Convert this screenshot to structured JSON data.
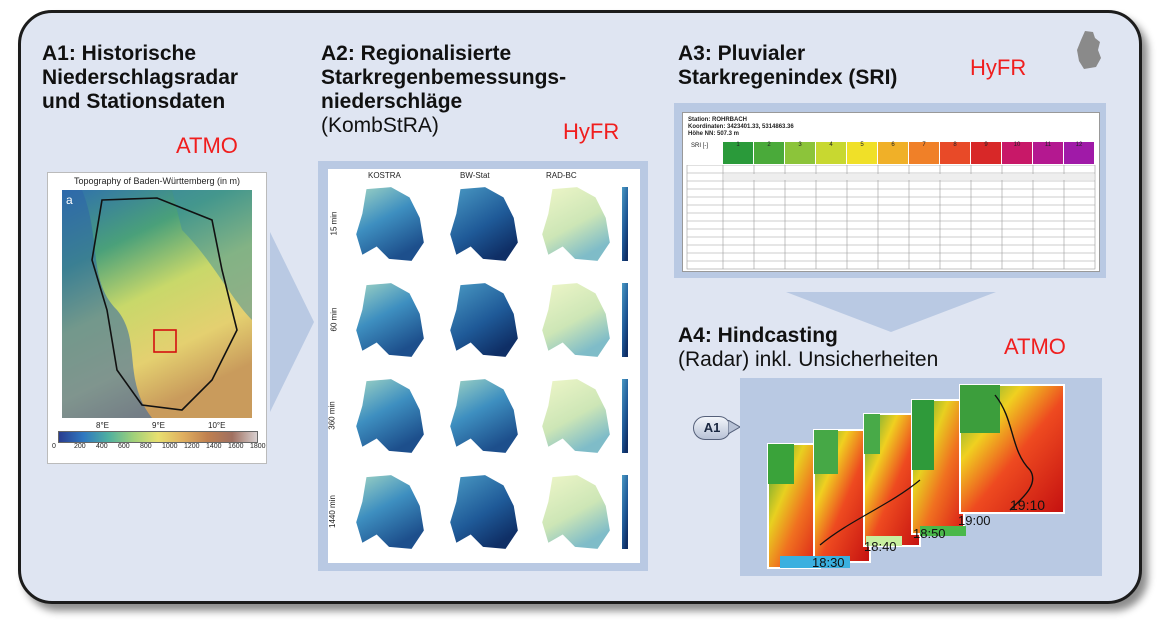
{
  "sections": {
    "a1": {
      "title_l1": "A1: Historische",
      "title_l2": "Niederschlagsradar",
      "title_l3": "und Stationsdaten",
      "tag": "ATMO"
    },
    "a2": {
      "title_l1": "A2: Regionalisierte",
      "title_l2": "Starkregenbemessungs-",
      "title_l3": "niederschläge",
      "title_l4": "(KombStRA)",
      "tag": "HyFR"
    },
    "a3": {
      "title_l1": "A3: Pluvialer",
      "title_l2": "Starkregenindex (SRI)",
      "tag": "HyFR"
    },
    "a4": {
      "title_l1": "A4: Hindcasting",
      "title_l2": "(Radar) inkl. Unsicherheiten",
      "tag": "ATMO"
    }
  },
  "map_a1": {
    "title": "Topography of Baden-Württemberg (in m)",
    "panel_letter": "a",
    "x_ticks": [
      "8°E",
      "9°E",
      "10°E"
    ],
    "colorbar_ticks": [
      "0",
      "200",
      "400",
      "600",
      "800",
      "1000",
      "1200",
      "1400",
      "1600",
      "1800"
    ]
  },
  "map_grid_a2": {
    "columns": [
      "KOSTRA",
      "BW-Stat",
      "RAD-BC"
    ],
    "rows": [
      "15 min",
      "60 min",
      "360 min",
      "1440 min"
    ]
  },
  "sri_table": {
    "head1": "Station: ROHRBACH",
    "head2": "Koordinaten: 3423401.33, 5314863.36",
    "head3": "Höhe NN: 507.3 m",
    "sri_label": "SRI [-]",
    "sri_values": [
      "1",
      "2",
      "3",
      "4",
      "5",
      "6",
      "7",
      "8",
      "9",
      "10",
      "11",
      "12"
    ]
  },
  "a4_callout": "A1",
  "radar_timestamps": [
    "18:30",
    "18:40",
    "18:50",
    "19:00",
    "19:10"
  ],
  "colors": {
    "panel_bg": "#dfe5f2",
    "tag_red": "#f01e1e",
    "arrow": "#b9c9e3"
  }
}
